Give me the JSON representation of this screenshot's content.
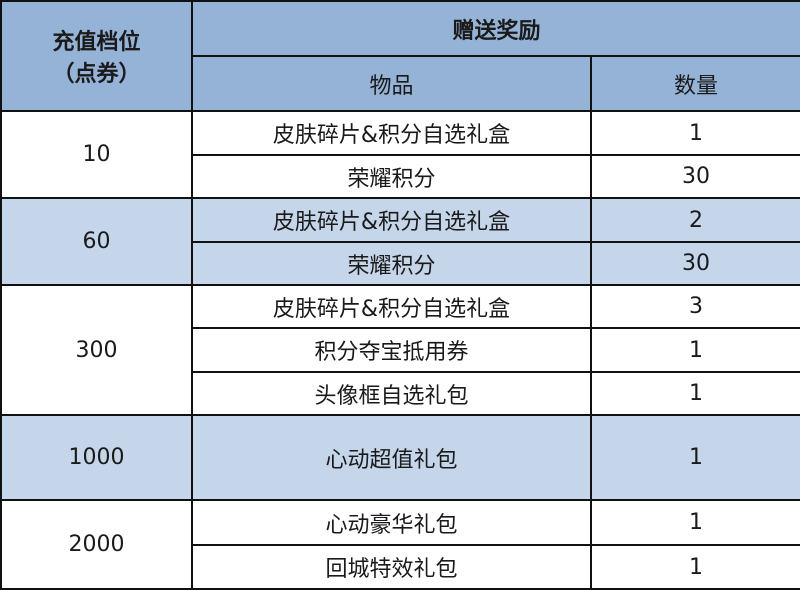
{
  "header": {
    "tier_label_line1": "充值档位",
    "tier_label_line2": "（点券）",
    "reward_label": "赠送奖励",
    "item_label": "物品",
    "qty_label": "数量"
  },
  "colors": {
    "header_bg": "#95b3d7",
    "alt_row_bg": "#c5d5ea"
  },
  "tiers": [
    {
      "tier": "10",
      "items": [
        {
          "name": "皮肤碎片&积分自选礼盒",
          "qty": "1"
        },
        {
          "name": "荣耀积分",
          "qty": "30"
        }
      ]
    },
    {
      "tier": "60",
      "items": [
        {
          "name": "皮肤碎片&积分自选礼盒",
          "qty": "2"
        },
        {
          "name": "荣耀积分",
          "qty": "30"
        }
      ]
    },
    {
      "tier": "300",
      "items": [
        {
          "name": "皮肤碎片&积分自选礼盒",
          "qty": "3"
        },
        {
          "name": "积分夺宝抵用券",
          "qty": "1"
        },
        {
          "name": "头像框自选礼包",
          "qty": "1"
        }
      ]
    },
    {
      "tier": "1000",
      "items": [
        {
          "name": "心动超值礼包",
          "qty": "1"
        }
      ]
    },
    {
      "tier": "2000",
      "items": [
        {
          "name": "心动豪华礼包",
          "qty": "1"
        },
        {
          "name": "回城特效礼包",
          "qty": "1"
        }
      ]
    }
  ]
}
